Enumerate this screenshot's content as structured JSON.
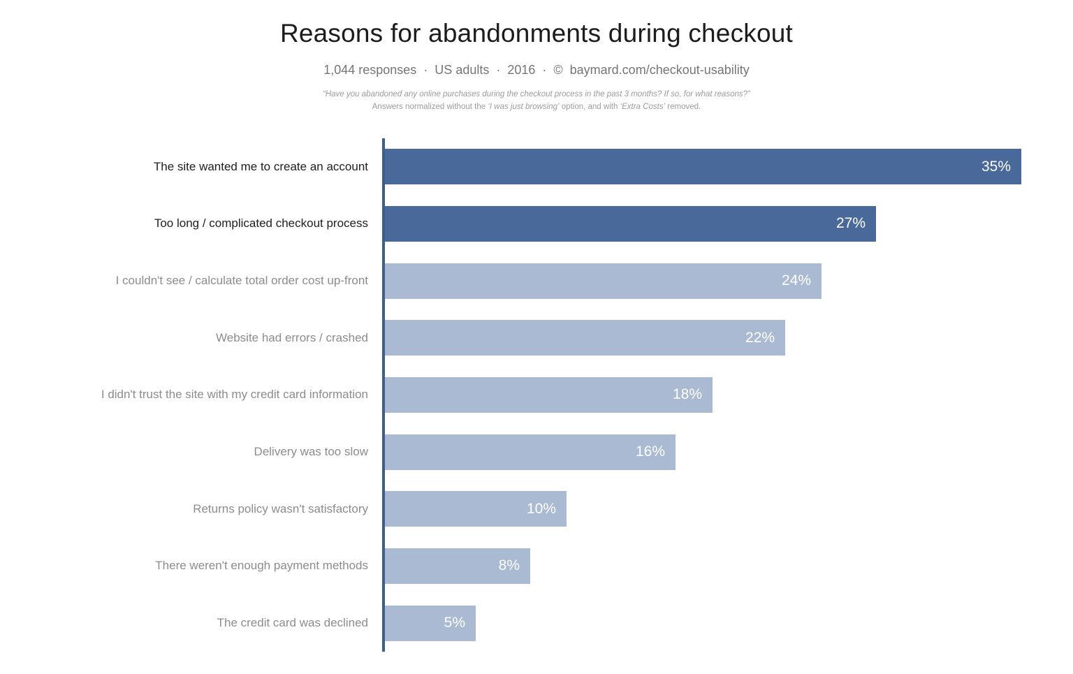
{
  "header": {
    "title": "Reasons for abandonments during checkout",
    "subtitle": "1,044 responses  ·  US adults  ·  2016  ·  ©  baymard.com/checkout-usability",
    "footnote_question": "“Have you abandoned any online purchases during the checkout process in the past 3 months? If so, for what reasons?”",
    "footnote_note": {
      "pre": "Answers normalized without the ",
      "italic1": "‘I was just browsing’",
      "mid": " option, and with ",
      "italic2": "‘Extra Costs’",
      "post": " removed."
    }
  },
  "chart_data": {
    "type": "bar",
    "orientation": "horizontal",
    "title": "Reasons for abandonments during checkout",
    "subtitle": "1,044 responses · US adults · 2016 · © baymard.com/checkout-usability",
    "categories": [
      "The site wanted me to create an account",
      "Too long / complicated checkout process",
      "I couldn't see / calculate total order cost up-front",
      "Website had errors / crashed",
      "I didn't trust the site with my credit card information",
      "Delivery was too slow",
      "Returns policy wasn't satisfactory",
      "There weren't enough payment methods",
      "The credit card was declined"
    ],
    "values": [
      35,
      27,
      24,
      22,
      18,
      16,
      10,
      8,
      5
    ],
    "value_suffix": "%",
    "highlight_first_n": 2,
    "xlim": [
      0,
      35
    ],
    "grid": false,
    "legend": "none",
    "colors": {
      "bar_highlight": "#48699a",
      "bar_normal": "#a9bad2",
      "axis": "#3c5f8c",
      "label_highlight": "#1e1e1e",
      "label_normal": "#8c8c8c",
      "value_text": "#ffffff"
    }
  }
}
